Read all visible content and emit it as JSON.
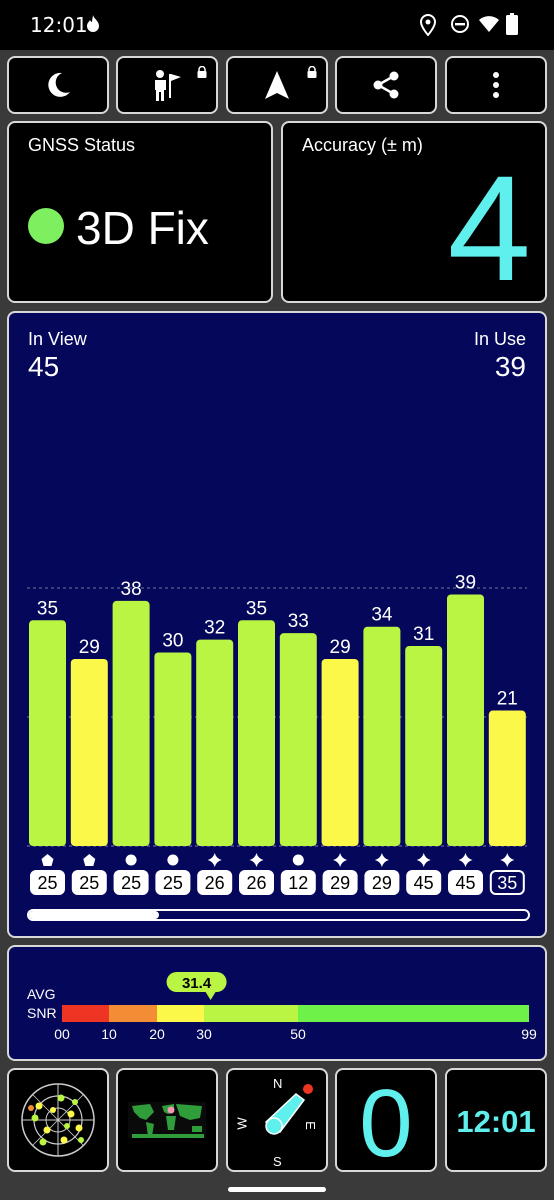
{
  "status_bar": {
    "time": "12:01",
    "icons": [
      "fire-icon",
      "location-pin-icon",
      "do-not-disturb-icon",
      "wifi-icon",
      "battery-icon"
    ]
  },
  "toolbar": {
    "buttons": [
      {
        "icon": "moon-icon"
      },
      {
        "icon": "person-flag-icon",
        "locked": true
      },
      {
        "icon": "navigation-arrow-icon",
        "locked": true
      },
      {
        "icon": "share-icon"
      },
      {
        "icon": "more-vert-icon"
      }
    ]
  },
  "gnss_status": {
    "label": "GNSS Status",
    "value": "3D Fix",
    "indicator_color": "#7ef060"
  },
  "accuracy": {
    "label": "Accuracy (± m)",
    "value": "4",
    "color": "#5ff0ee"
  },
  "satellites": {
    "in_view_label": "In View",
    "in_view": "45",
    "in_use_label": "In Use",
    "in_use": "39"
  },
  "chart_data": {
    "type": "bar",
    "values": [
      35,
      29,
      38,
      30,
      32,
      35,
      33,
      29,
      34,
      31,
      39,
      21
    ],
    "ids": [
      "25",
      "25",
      "25",
      "25",
      "26",
      "26",
      "12",
      "29",
      "29",
      "45",
      "45",
      "35"
    ],
    "constellation_icons": [
      "pentagon",
      "pentagon",
      "circle",
      "circle",
      "star",
      "star",
      "circle",
      "star",
      "star",
      "star",
      "star",
      "star"
    ],
    "in_use": [
      true,
      true,
      true,
      true,
      true,
      true,
      true,
      true,
      true,
      true,
      true,
      false
    ],
    "ylim": [
      0,
      60
    ],
    "colors": {
      "strong": "#b9f542",
      "weak": "#fbf84a"
    },
    "scroll_position": 0.26
  },
  "avg_snr": {
    "label_1": "AVG",
    "label_2": "SNR",
    "value": "31.4",
    "value_num": 31.4,
    "scale_ticks": [
      "00",
      "10",
      "20",
      "30",
      "50",
      "99"
    ],
    "segments": [
      {
        "from": 0,
        "to": 10,
        "color": "#ee3524"
      },
      {
        "from": 10,
        "to": 20,
        "color": "#f28c35"
      },
      {
        "from": 20,
        "to": 30,
        "color": "#fbf84a"
      },
      {
        "from": 30,
        "to": 50,
        "color": "#b9f542"
      },
      {
        "from": 50,
        "to": 99,
        "color": "#6ef24a"
      }
    ]
  },
  "compass": {
    "n": "N",
    "e": "E",
    "s": "S",
    "w": "W"
  },
  "speed": {
    "value": "0"
  },
  "clock": {
    "value": "12:01"
  }
}
